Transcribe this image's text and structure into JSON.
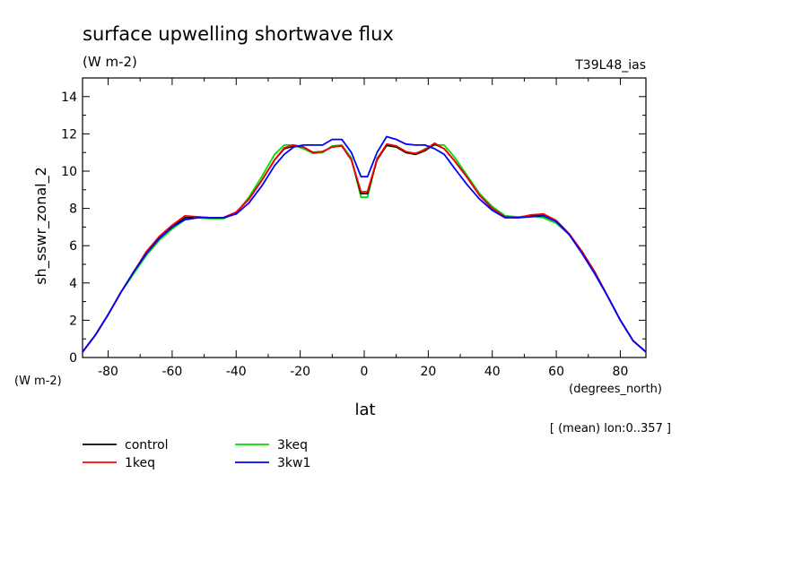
{
  "chart_data": {
    "type": "line",
    "title": "surface upwelling shortwave flux",
    "units_label": "(W m-2)",
    "run_label": "T39L48_ias",
    "ylabel": "sh_sswr_zonal_2",
    "y_units": "(W m-2)",
    "xlabel": "lat",
    "x_units": "(degrees_north)",
    "footnote": "[ (mean) lon:0..357 ]",
    "xlim": [
      -88,
      88
    ],
    "ylim": [
      0,
      15
    ],
    "x_ticks": [
      -80,
      -60,
      -40,
      -20,
      0,
      20,
      40,
      60,
      80
    ],
    "x_tick_labels": [
      "-80",
      "-60",
      "-40",
      "-20",
      "0",
      "20",
      "40",
      "60",
      "80"
    ],
    "y_ticks": [
      0,
      2,
      4,
      6,
      8,
      10,
      12,
      14
    ],
    "y_tick_labels": [
      "0",
      "2",
      "4",
      "6",
      "8",
      "10",
      "12",
      "14"
    ],
    "grid": false,
    "legend_position": "bottom-left",
    "x": [
      -88,
      -84,
      -80,
      -76,
      -72,
      -68,
      -64,
      -60,
      -56,
      -52,
      -48,
      -44,
      -40,
      -36,
      -32,
      -28,
      -25,
      -22,
      -19,
      -16,
      -13,
      -10,
      -7,
      -4,
      -1,
      1,
      4,
      7,
      10,
      13,
      16,
      19,
      22,
      25,
      28,
      32,
      36,
      40,
      44,
      48,
      52,
      56,
      60,
      64,
      68,
      72,
      76,
      80,
      84,
      88
    ],
    "series": [
      {
        "name": "control",
        "color": "#000000",
        "values": [
          0.3,
          1.2,
          2.3,
          3.5,
          4.6,
          5.6,
          6.4,
          7.0,
          7.5,
          7.55,
          7.5,
          7.5,
          7.8,
          8.5,
          9.5,
          10.6,
          11.2,
          11.35,
          11.3,
          11.0,
          11.05,
          11.3,
          11.35,
          10.6,
          8.8,
          8.8,
          10.6,
          11.4,
          11.3,
          11.0,
          10.9,
          11.1,
          11.45,
          11.2,
          10.6,
          9.7,
          8.7,
          8.0,
          7.55,
          7.5,
          7.6,
          7.65,
          7.3,
          6.6,
          5.7,
          4.6,
          3.3,
          2.0,
          0.9,
          0.3
        ]
      },
      {
        "name": "1keq",
        "color": "#ff0000",
        "values": [
          0.3,
          1.2,
          2.3,
          3.5,
          4.6,
          5.7,
          6.5,
          7.1,
          7.6,
          7.55,
          7.5,
          7.5,
          7.8,
          8.5,
          9.5,
          10.6,
          11.25,
          11.4,
          11.3,
          11.0,
          11.05,
          11.3,
          11.35,
          10.6,
          8.9,
          8.9,
          10.65,
          11.45,
          11.35,
          11.05,
          10.95,
          11.15,
          11.5,
          11.2,
          10.6,
          9.7,
          8.7,
          8.0,
          7.55,
          7.5,
          7.65,
          7.7,
          7.35,
          6.65,
          5.7,
          4.6,
          3.3,
          2.0,
          0.9,
          0.3
        ]
      },
      {
        "name": "3keq",
        "color": "#00dd00",
        "values": [
          0.3,
          1.2,
          2.3,
          3.5,
          4.5,
          5.5,
          6.3,
          6.9,
          7.4,
          7.5,
          7.45,
          7.45,
          7.75,
          8.6,
          9.7,
          10.9,
          11.4,
          11.4,
          11.2,
          10.95,
          11.0,
          11.35,
          11.4,
          10.7,
          8.6,
          8.6,
          10.7,
          11.35,
          11.3,
          11.0,
          10.9,
          11.2,
          11.4,
          11.4,
          10.8,
          9.8,
          8.8,
          8.1,
          7.6,
          7.55,
          7.6,
          7.5,
          7.2,
          6.6,
          5.6,
          4.5,
          3.3,
          2.0,
          0.9,
          0.3
        ]
      },
      {
        "name": "3kw1",
        "color": "#0000ff",
        "values": [
          0.3,
          1.2,
          2.3,
          3.5,
          4.6,
          5.6,
          6.4,
          7.0,
          7.4,
          7.5,
          7.5,
          7.5,
          7.7,
          8.3,
          9.2,
          10.3,
          10.9,
          11.3,
          11.4,
          11.4,
          11.4,
          11.7,
          11.7,
          11.0,
          9.7,
          9.7,
          11.0,
          11.85,
          11.7,
          11.45,
          11.4,
          11.4,
          11.2,
          10.9,
          10.2,
          9.3,
          8.5,
          7.9,
          7.5,
          7.5,
          7.55,
          7.6,
          7.3,
          6.6,
          5.6,
          4.5,
          3.3,
          2.0,
          0.9,
          0.3
        ]
      }
    ]
  }
}
